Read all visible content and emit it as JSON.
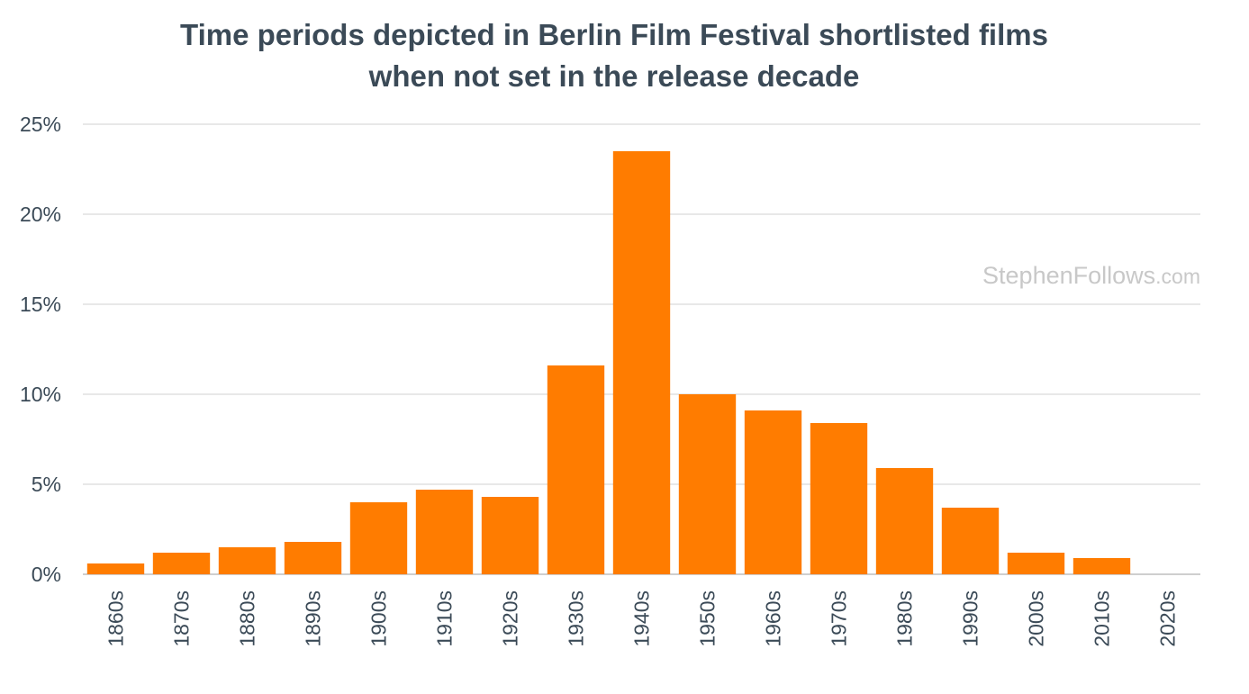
{
  "chart_data": {
    "type": "bar",
    "title_lines": [
      "Time periods depicted in Berlin Film Festival shortlisted films",
      "when not set in the release decade"
    ],
    "watermark": {
      "main": "StephenFollows",
      "suffix": ".com"
    },
    "categories": [
      "1860s",
      "1870s",
      "1880s",
      "1890s",
      "1900s",
      "1910s",
      "1920s",
      "1930s",
      "1940s",
      "1950s",
      "1960s",
      "1970s",
      "1980s",
      "1990s",
      "2000s",
      "2010s",
      "2020s"
    ],
    "values": [
      0.6,
      1.2,
      1.5,
      1.8,
      4.0,
      4.7,
      4.3,
      11.6,
      23.5,
      10.0,
      9.1,
      8.4,
      5.9,
      3.7,
      1.2,
      0.9,
      0.0
    ],
    "y_unit": "%",
    "ylim": [
      0,
      25
    ],
    "yticks": [
      0,
      5,
      10,
      15,
      20,
      25
    ],
    "grid": true,
    "legend": "none",
    "colors": {
      "bar": "#ff7c00",
      "grid": "#d9d9d9",
      "axis": "#bfbfbf",
      "text": "#3b4a57",
      "watermark": "#c8c8c8"
    }
  }
}
